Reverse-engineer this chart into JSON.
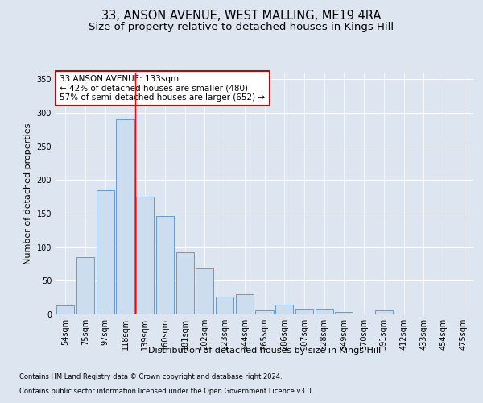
{
  "title": "33, ANSON AVENUE, WEST MALLING, ME19 4RA",
  "subtitle": "Size of property relative to detached houses in Kings Hill",
  "xlabel": "Distribution of detached houses by size in Kings Hill",
  "ylabel": "Number of detached properties",
  "categories": [
    "54sqm",
    "75sqm",
    "97sqm",
    "118sqm",
    "139sqm",
    "160sqm",
    "181sqm",
    "202sqm",
    "223sqm",
    "244sqm",
    "265sqm",
    "286sqm",
    "307sqm",
    "328sqm",
    "349sqm",
    "370sqm",
    "391sqm",
    "412sqm",
    "433sqm",
    "454sqm",
    "475sqm"
  ],
  "values": [
    13,
    85,
    185,
    290,
    175,
    147,
    92,
    68,
    27,
    30,
    6,
    15,
    8,
    9,
    4,
    0,
    6,
    0,
    0,
    0,
    0
  ],
  "bar_color": "#ccddf0",
  "bar_edge_color": "#6699cc",
  "red_line_x": 3.5,
  "annotation_text": "33 ANSON AVENUE: 133sqm\n← 42% of detached houses are smaller (480)\n57% of semi-detached houses are larger (652) →",
  "annotation_box_color": "#ffffff",
  "annotation_box_edge_color": "#cc0000",
  "footer_line1": "Contains HM Land Registry data © Crown copyright and database right 2024.",
  "footer_line2": "Contains public sector information licensed under the Open Government Licence v3.0.",
  "background_color": "#dde6f0",
  "plot_bg_color": "#dde6f0",
  "ylim": [
    0,
    360
  ],
  "yticks": [
    0,
    50,
    100,
    150,
    200,
    250,
    300,
    350
  ],
  "title_fontsize": 10.5,
  "subtitle_fontsize": 9.5,
  "ylabel_fontsize": 8,
  "xlabel_fontsize": 8,
  "tick_fontsize": 7,
  "footer_fontsize": 6,
  "ann_fontsize": 7.5
}
